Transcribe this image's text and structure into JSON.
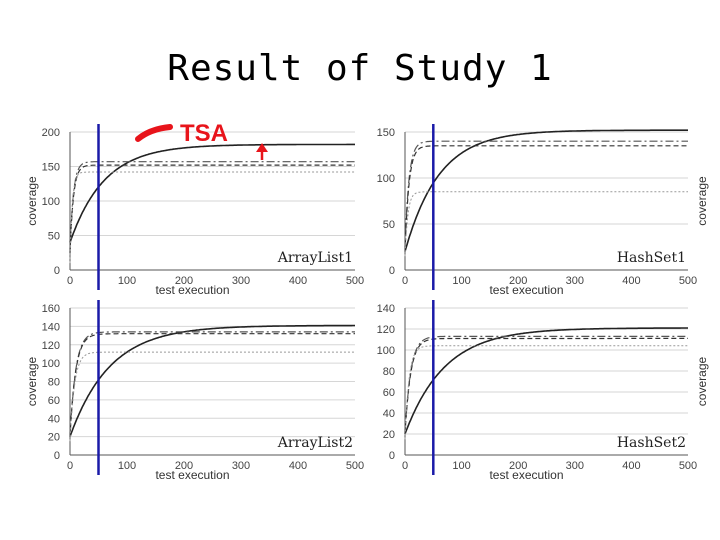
{
  "slide": {
    "title": "Result of Study 1"
  },
  "annotation": {
    "text": "TSA",
    "color": "#e8141b"
  },
  "marker_color": "#1a1aa8",
  "chart_data": [
    {
      "type": "line",
      "title": "ArrayList1",
      "xlabel": "test execution",
      "ylabel": "coverage",
      "xlim": [
        0,
        500
      ],
      "ylim": [
        0,
        200
      ],
      "xticks": [
        0,
        100,
        200,
        300,
        400,
        500
      ],
      "yticks": [
        0,
        50,
        100,
        150,
        200
      ],
      "ylabel_side": "left",
      "marker_x": 50,
      "series": [
        {
          "style": "solid",
          "start": 40,
          "end": 182,
          "rate": 60
        },
        {
          "style": "dashdot",
          "start": 30,
          "end": 157,
          "rate": 6
        },
        {
          "style": "dashed",
          "start": 25,
          "end": 152,
          "rate": 6
        },
        {
          "style": "dotted",
          "start": 10,
          "end": 142,
          "rate": 4
        }
      ]
    },
    {
      "type": "line",
      "title": "HashSet1",
      "xlabel": "test execution",
      "ylabel": "coverage",
      "xlim": [
        0,
        500
      ],
      "ylim": [
        0,
        150
      ],
      "xticks": [
        0,
        100,
        200,
        300,
        400,
        500
      ],
      "yticks": [
        0,
        50,
        100,
        150
      ],
      "ylabel_side": "right",
      "marker_x": 50,
      "series": [
        {
          "style": "solid",
          "start": 20,
          "end": 152,
          "rate": 60
        },
        {
          "style": "dashdot",
          "start": 25,
          "end": 140,
          "rate": 7
        },
        {
          "style": "dashed",
          "start": 20,
          "end": 135,
          "rate": 7
        },
        {
          "style": "dotted",
          "start": 15,
          "end": 85,
          "rate": 5
        }
      ]
    },
    {
      "type": "line",
      "title": "ArrayList2",
      "xlabel": "test execution",
      "ylabel": "coverage",
      "xlim": [
        0,
        500
      ],
      "ylim": [
        0,
        160
      ],
      "xticks": [
        0,
        100,
        200,
        300,
        400,
        500
      ],
      "yticks": [
        0,
        20,
        40,
        60,
        80,
        100,
        120,
        140,
        160
      ],
      "ylabel_side": "left",
      "marker_x": 50,
      "series": [
        {
          "style": "solid",
          "start": 20,
          "end": 141,
          "rate": 70
        },
        {
          "style": "dashdot",
          "start": 20,
          "end": 134,
          "rate": 10
        },
        {
          "style": "dashed",
          "start": 20,
          "end": 132,
          "rate": 10
        },
        {
          "style": "dotted",
          "start": 15,
          "end": 112,
          "rate": 8
        }
      ]
    },
    {
      "type": "line",
      "title": "HashSet2",
      "xlabel": "test execution",
      "ylabel": "coverage",
      "xlim": [
        0,
        500
      ],
      "ylim": [
        0,
        140
      ],
      "xticks": [
        0,
        100,
        200,
        300,
        400,
        500
      ],
      "yticks": [
        0,
        20,
        40,
        60,
        80,
        100,
        120,
        140
      ],
      "ylabel_side": "right",
      "marker_x": 50,
      "series": [
        {
          "style": "solid",
          "start": 20,
          "end": 121,
          "rate": 70
        },
        {
          "style": "dashdot",
          "start": 20,
          "end": 113,
          "rate": 10
        },
        {
          "style": "dashed",
          "start": 20,
          "end": 111,
          "rate": 10
        },
        {
          "style": "dotted",
          "start": 15,
          "end": 104,
          "rate": 7
        }
      ]
    }
  ]
}
